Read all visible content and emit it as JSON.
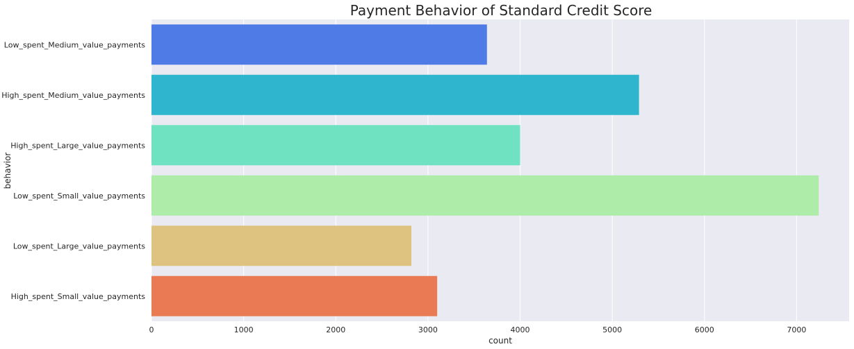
{
  "chart_data": {
    "type": "bar",
    "orientation": "horizontal",
    "title": "Payment Behavior of Standard Credit Score",
    "xlabel": "count",
    "ylabel": "behavior",
    "categories": [
      "Low_spent_Medium_value_payments",
      "High_spent_Medium_value_payments",
      "High_spent_Large_value_payments",
      "Low_spent_Small_value_payments",
      "Low_spent_Large_value_payments",
      "High_spent_Small_value_payments"
    ],
    "values": [
      3640,
      5290,
      4000,
      7240,
      2820,
      3100
    ],
    "colors": [
      "#4f7be6",
      "#2fb5cd",
      "#6fe3c1",
      "#aeeca9",
      "#dec27f",
      "#e97a53"
    ],
    "xlim": [
      0,
      7570
    ],
    "xticks": [
      0,
      1000,
      2000,
      3000,
      4000,
      5000,
      6000,
      7000
    ],
    "grid": true,
    "background": "#eaeaf2"
  }
}
